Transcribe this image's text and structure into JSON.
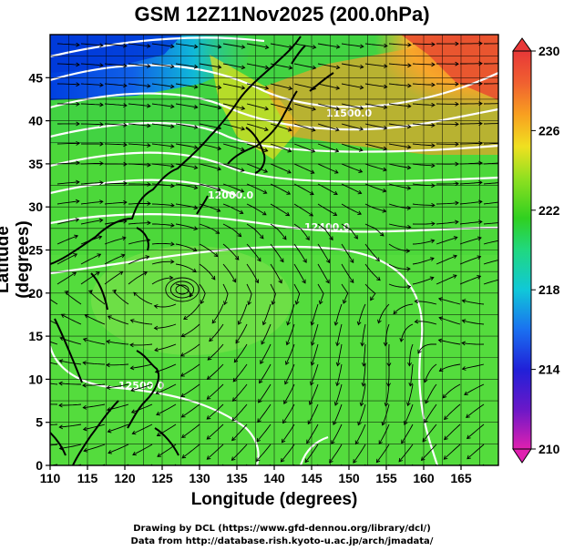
{
  "title": "GSM 12Z11Nov2025 (200.0hPa)",
  "xaxis": {
    "label": "Longitude (degrees)",
    "ticks": [
      "110",
      "115",
      "120",
      "125",
      "130",
      "135",
      "140",
      "145",
      "150",
      "155",
      "160",
      "165"
    ],
    "range": [
      110,
      170
    ]
  },
  "yaxis": {
    "label": "Latitude  (degrees)",
    "ticks": [
      "0",
      "5",
      "10",
      "15",
      "20",
      "25",
      "30",
      "35",
      "40",
      "45"
    ],
    "range": [
      0,
      50
    ]
  },
  "colorbar": {
    "ticks": [
      "210",
      "214",
      "218",
      "222",
      "226",
      "230"
    ],
    "range": [
      210,
      230
    ]
  },
  "contours": [
    {
      "label": "11500.0"
    },
    {
      "label": "12000.0"
    },
    {
      "label": "12400.0"
    },
    {
      "label": "12500.0"
    }
  ],
  "credits": {
    "line1": "Drawing by DCL (https://www.gfd-dennou.org/library/dcl/)",
    "line2": "Data from http://database.rish.kyoto-u.ac.jp/arch/jmadata/"
  },
  "colors": {
    "frame": "#000000",
    "contour": "#ffffff",
    "streamline": "#000000",
    "coast": "#000000"
  }
}
